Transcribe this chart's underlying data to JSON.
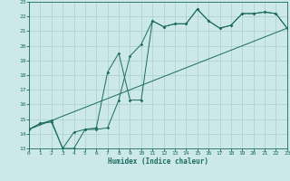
{
  "xlabel": "Humidex (Indice chaleur)",
  "xlim": [
    0,
    23
  ],
  "ylim": [
    13,
    23
  ],
  "xticks": [
    0,
    1,
    2,
    3,
    4,
    5,
    6,
    7,
    8,
    9,
    10,
    11,
    12,
    13,
    14,
    15,
    16,
    17,
    18,
    19,
    20,
    21,
    22,
    23
  ],
  "yticks": [
    13,
    14,
    15,
    16,
    17,
    18,
    19,
    20,
    21,
    22,
    23
  ],
  "bg_color": "#cce8e8",
  "line_color": "#1a6b5e",
  "grid_color": "#aacece",
  "line1_x": [
    0,
    1,
    2,
    3,
    4,
    5,
    6,
    7,
    8,
    9,
    10,
    11,
    12,
    13,
    14,
    15,
    16,
    17,
    18,
    19,
    20,
    21,
    22,
    23
  ],
  "line1_y": [
    14.3,
    14.7,
    14.8,
    13.0,
    14.1,
    14.3,
    14.3,
    14.4,
    16.3,
    19.3,
    20.1,
    21.7,
    21.3,
    21.5,
    21.5,
    22.5,
    21.7,
    21.2,
    21.4,
    22.2,
    22.2,
    22.3,
    22.2,
    21.2
  ],
  "line2_x": [
    0,
    1,
    2,
    3,
    4,
    5,
    6,
    7,
    8,
    9,
    10,
    11,
    12,
    13,
    14,
    15,
    16,
    17,
    18,
    19,
    20,
    21,
    22,
    23
  ],
  "line2_y": [
    14.3,
    14.7,
    14.9,
    13.0,
    13.0,
    14.3,
    14.4,
    18.2,
    19.5,
    16.3,
    16.3,
    21.7,
    21.3,
    21.5,
    21.5,
    22.5,
    21.7,
    21.2,
    21.4,
    22.2,
    22.2,
    22.3,
    22.2,
    21.2
  ],
  "line3_x": [
    0,
    23
  ],
  "line3_y": [
    14.3,
    21.2
  ]
}
